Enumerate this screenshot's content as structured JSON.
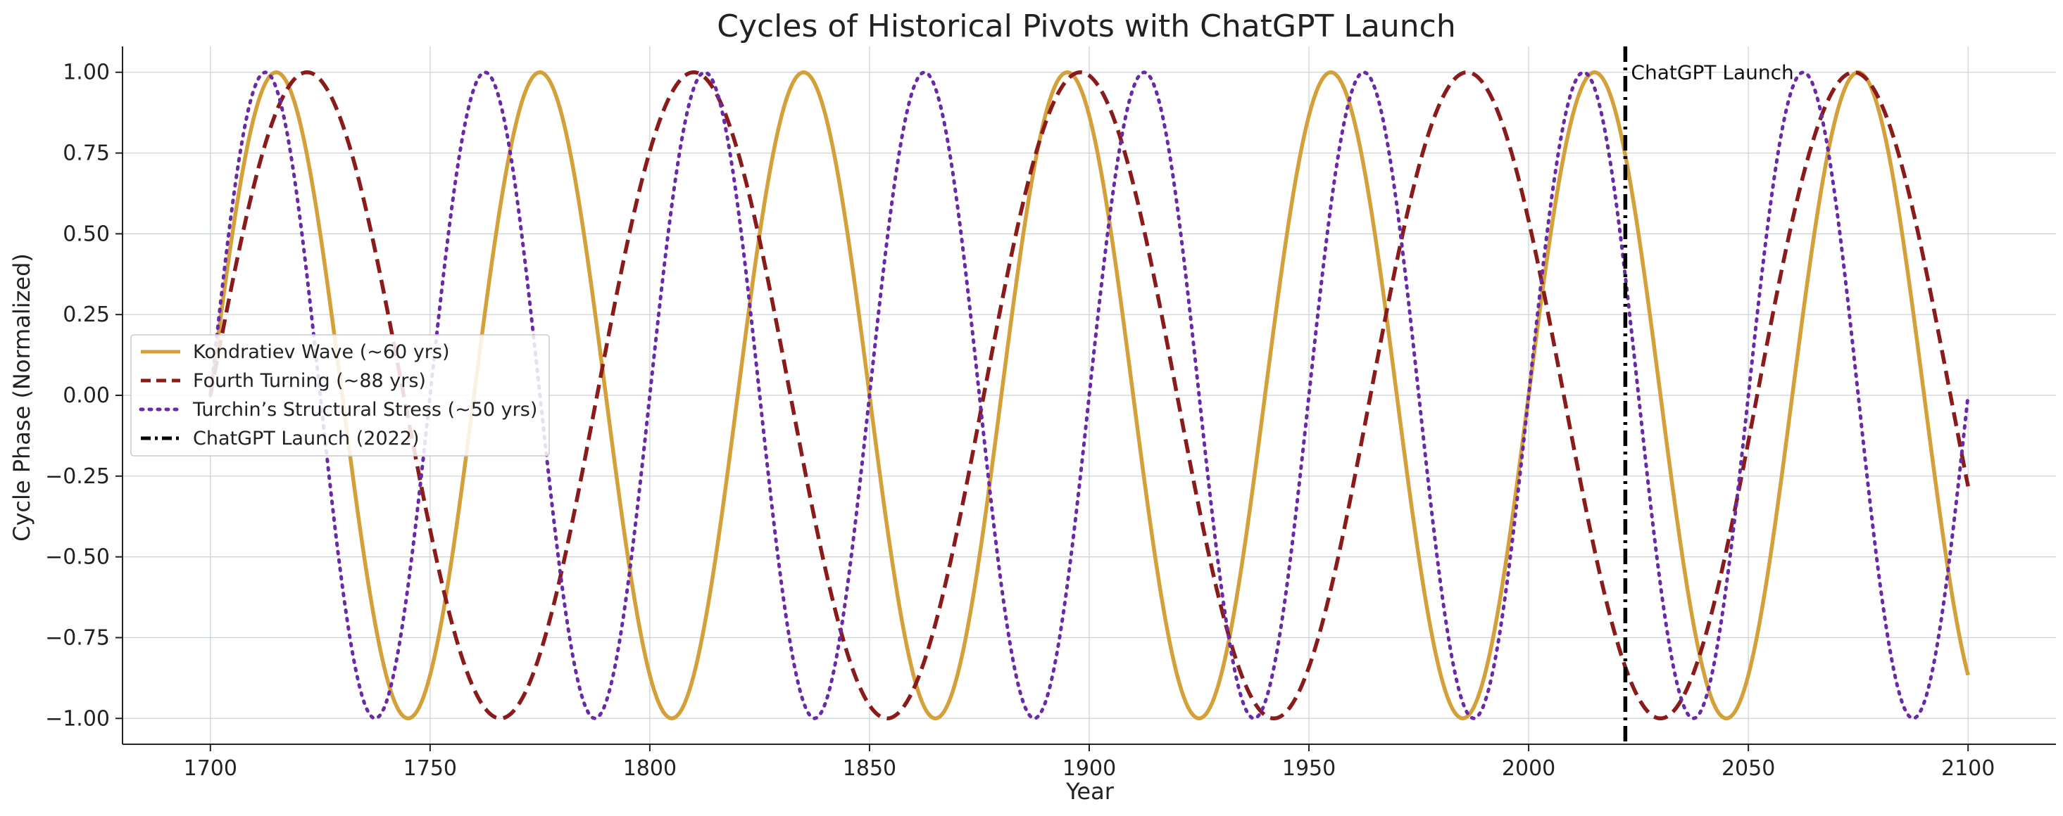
{
  "chart_data": {
    "type": "line",
    "title": "Cycles of Historical Pivots with ChatGPT Launch",
    "xlabel": "Year",
    "ylabel": "Cycle Phase (Normalized)",
    "xlim": [
      1680,
      2120
    ],
    "ylim": [
      -1.08,
      1.08
    ],
    "x_domain": [
      1700,
      2100
    ],
    "xticks": [
      1700,
      1750,
      1800,
      1850,
      1900,
      1950,
      2000,
      2050,
      2100
    ],
    "yticks": [
      -1.0,
      -0.75,
      -0.5,
      -0.25,
      0.0,
      0.25,
      0.5,
      0.75,
      1.0
    ],
    "ytick_labels": [
      "−1.00",
      "−0.75",
      "−0.50",
      "−0.25",
      "0.00",
      "0.25",
      "0.50",
      "0.75",
      "1.00"
    ],
    "grid": true,
    "legend_position": "center-left",
    "series": [
      {
        "name": "Kondratiev Wave (~60 yrs)",
        "formula": "sin(2π(year−1700)/60)",
        "period": 60,
        "color": "#d4a03a",
        "style": "solid"
      },
      {
        "name": "Fourth Turning (~88 yrs)",
        "formula": "sin(2π(year−1700)/88)",
        "period": 88,
        "color": "#8b1a1a",
        "style": "dashed"
      },
      {
        "name": "Turchin’s Structural Stress (~50 yrs)",
        "formula": "sin(2π(year−1700)/50)",
        "period": 50,
        "color": "#6a2aa8",
        "style": "dotted"
      }
    ],
    "vline": {
      "x": 2022,
      "label": "ChatGPT Launch (2022)",
      "annotation": "ChatGPT Launch",
      "color": "#000000",
      "style": "dashdot"
    }
  }
}
